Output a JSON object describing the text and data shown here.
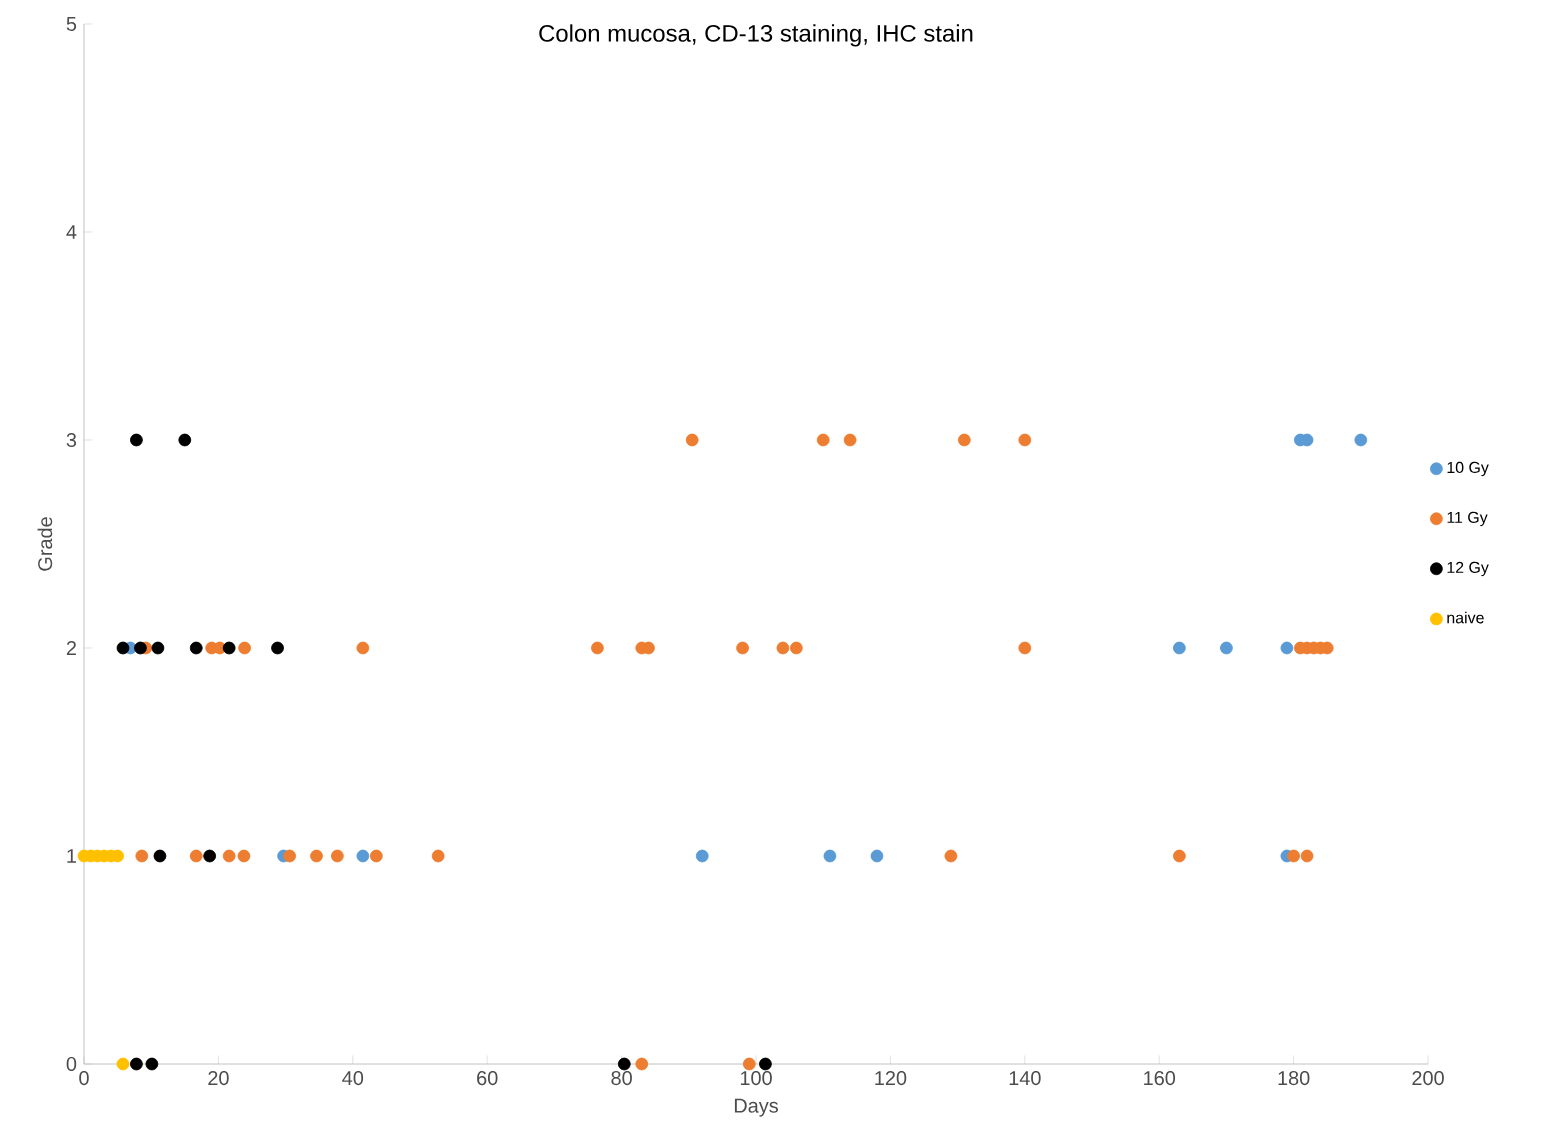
{
  "chart_data": {
    "type": "scatter",
    "title": "Colon mucosa, CD-13 staining, IHC stain",
    "xlabel": "Days",
    "ylabel": "Grade",
    "xlim": [
      0,
      200
    ],
    "ylim": [
      0,
      5
    ],
    "xticks": [
      0,
      20,
      40,
      60,
      80,
      100,
      120,
      140,
      160,
      180,
      200
    ],
    "yticks": [
      0,
      1,
      2,
      3,
      4,
      5
    ],
    "grid": false,
    "legend": "right",
    "marker": "circle",
    "series": [
      {
        "name": "10 Gy",
        "color": "#5b9bd5",
        "x": [
          29.7,
          41.5,
          92,
          111,
          118,
          179,
          6.9,
          163,
          170,
          179,
          181,
          182,
          190
        ],
        "values": [
          1,
          1,
          1,
          1,
          1,
          1,
          2,
          2,
          2,
          2,
          3,
          3,
          3
        ]
      },
      {
        "name": "11 Gy",
        "color": "#ed7d31",
        "x": [
          8.6,
          16.7,
          21.6,
          23.8,
          30.6,
          34.6,
          37.7,
          43.5,
          52.7,
          129,
          163,
          180,
          182,
          83,
          99,
          9.2,
          19,
          20.2,
          23.9,
          41.5,
          76.4,
          83,
          84,
          98,
          104,
          106,
          140,
          181,
          182,
          183,
          184,
          185,
          90.5,
          110,
          114,
          131,
          140
        ],
        "values": [
          1,
          1,
          1,
          1,
          1,
          1,
          1,
          1,
          1,
          1,
          1,
          1,
          1,
          0,
          0,
          2,
          2,
          2,
          2,
          2,
          2,
          2,
          2,
          2,
          2,
          2,
          2,
          2,
          2,
          2,
          2,
          2,
          3,
          3,
          3,
          3,
          3
        ]
      },
      {
        "name": "12 Gy",
        "color": "#000000",
        "x": [
          11.3,
          18.7,
          7.8,
          10.1,
          80.4,
          101.4,
          5.8,
          8.4,
          11,
          16.7,
          21.6,
          28.8,
          7.8,
          15
        ],
        "values": [
          1,
          1,
          0,
          0,
          0,
          0,
          2,
          2,
          2,
          2,
          2,
          2,
          3,
          3
        ]
      },
      {
        "name": "naive",
        "color": "#ffc000",
        "x": [
          0,
          1,
          2,
          3,
          4,
          5,
          5.8
        ],
        "values": [
          1,
          1,
          1,
          1,
          1,
          1,
          0
        ]
      }
    ]
  }
}
